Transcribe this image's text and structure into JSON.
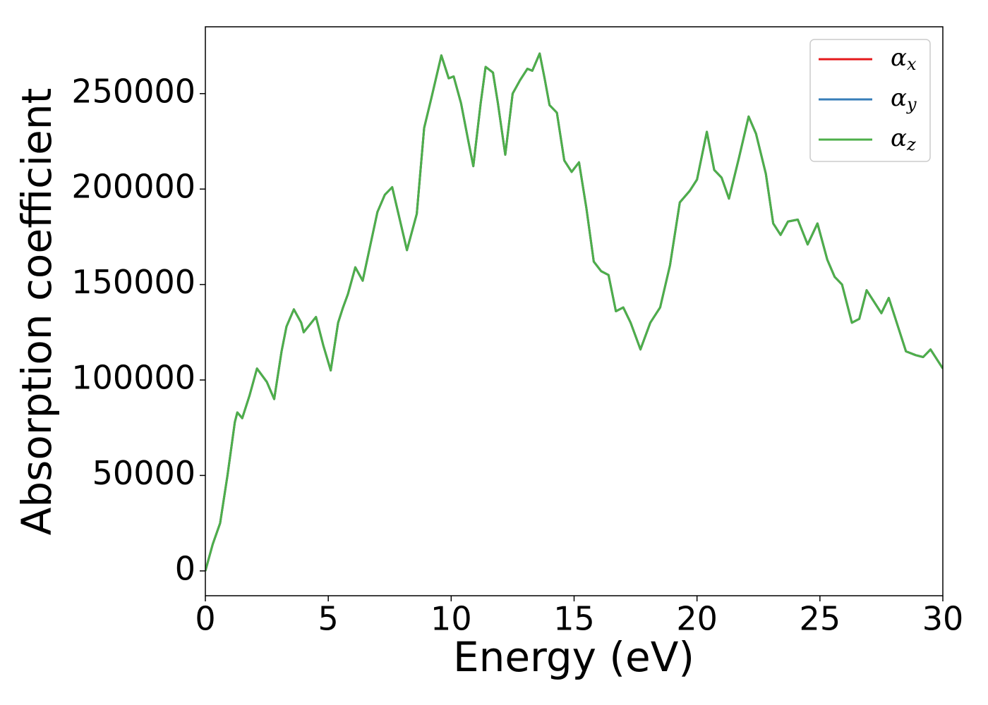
{
  "chart_data": {
    "type": "line",
    "xlabel": "Energy (eV)",
    "ylabel": "Absorption coefficient",
    "x": [
      0,
      0.3,
      0.6,
      0.9,
      1.2,
      1.3,
      1.5,
      1.8,
      2.1,
      2.5,
      2.8,
      3.1,
      3.3,
      3.6,
      3.9,
      4.0,
      4.5,
      4.8,
      5.1,
      5.4,
      5.6,
      5.8,
      6.1,
      6.4,
      6.7,
      7.0,
      7.3,
      7.6,
      7.8,
      8.2,
      8.6,
      8.9,
      9.2,
      9.6,
      9.9,
      10.1,
      10.4,
      10.7,
      10.9,
      11.2,
      11.4,
      11.7,
      11.9,
      12.2,
      12.5,
      12.8,
      13.1,
      13.3,
      13.6,
      13.8,
      14.0,
      14.3,
      14.6,
      14.9,
      15.2,
      15.5,
      15.8,
      16.1,
      16.4,
      16.7,
      17.0,
      17.3,
      17.7,
      18.1,
      18.5,
      18.9,
      19.3,
      19.7,
      20.0,
      20.4,
      20.7,
      21.0,
      21.3,
      21.7,
      22.1,
      22.4,
      22.8,
      23.1,
      23.4,
      23.7,
      24.1,
      24.5,
      24.9,
      25.3,
      25.6,
      25.9,
      26.3,
      26.6,
      26.9,
      27.2,
      27.5,
      27.8,
      28.1,
      28.5,
      28.9,
      29.2,
      29.5,
      30.0
    ],
    "series": [
      {
        "name": "αx",
        "color": "#e41a1c",
        "values": [
          0,
          14000,
          25000,
          50000,
          78000,
          83000,
          80000,
          92000,
          106000,
          99000,
          90000,
          115000,
          128000,
          137000,
          130000,
          125000,
          133000,
          118000,
          105000,
          130000,
          138000,
          145000,
          159000,
          152000,
          170000,
          188000,
          197000,
          201000,
          190000,
          168000,
          187000,
          232000,
          248000,
          270000,
          258000,
          259000,
          245000,
          225000,
          212000,
          245000,
          264000,
          261000,
          245000,
          218000,
          250000,
          257000,
          263000,
          262000,
          271000,
          258000,
          244000,
          240000,
          215000,
          209000,
          214000,
          190000,
          162000,
          157000,
          155000,
          136000,
          138000,
          130000,
          116000,
          130000,
          138000,
          160000,
          193000,
          199000,
          205000,
          230000,
          210000,
          206000,
          195000,
          216000,
          238000,
          229000,
          208000,
          182000,
          176000,
          183000,
          184000,
          171000,
          182000,
          163000,
          154000,
          150000,
          130000,
          132000,
          147000,
          141000,
          135000,
          143000,
          131000,
          115000,
          113000,
          112000,
          116000,
          106000
        ]
      },
      {
        "name": "αy",
        "color": "#377eb8",
        "values": [
          0,
          14000,
          25000,
          50000,
          78000,
          83000,
          80000,
          92000,
          106000,
          99000,
          90000,
          115000,
          128000,
          137000,
          130000,
          125000,
          133000,
          118000,
          105000,
          130000,
          138000,
          145000,
          159000,
          152000,
          170000,
          188000,
          197000,
          201000,
          190000,
          168000,
          187000,
          232000,
          248000,
          270000,
          258000,
          259000,
          245000,
          225000,
          212000,
          245000,
          264000,
          261000,
          245000,
          218000,
          250000,
          257000,
          263000,
          262000,
          271000,
          258000,
          244000,
          240000,
          215000,
          209000,
          214000,
          190000,
          162000,
          157000,
          155000,
          136000,
          138000,
          130000,
          116000,
          130000,
          138000,
          160000,
          193000,
          199000,
          205000,
          230000,
          210000,
          206000,
          195000,
          216000,
          238000,
          229000,
          208000,
          182000,
          176000,
          183000,
          184000,
          171000,
          182000,
          163000,
          154000,
          150000,
          130000,
          132000,
          147000,
          141000,
          135000,
          143000,
          131000,
          115000,
          113000,
          112000,
          116000,
          106000
        ]
      },
      {
        "name": "αz",
        "color": "#4daf4a",
        "values": [
          0,
          14000,
          25000,
          50000,
          78000,
          83000,
          80000,
          92000,
          106000,
          99000,
          90000,
          115000,
          128000,
          137000,
          130000,
          125000,
          133000,
          118000,
          105000,
          130000,
          138000,
          145000,
          159000,
          152000,
          170000,
          188000,
          197000,
          201000,
          190000,
          168000,
          187000,
          232000,
          248000,
          270000,
          258000,
          259000,
          245000,
          225000,
          212000,
          245000,
          264000,
          261000,
          245000,
          218000,
          250000,
          257000,
          263000,
          262000,
          271000,
          258000,
          244000,
          240000,
          215000,
          209000,
          214000,
          190000,
          162000,
          157000,
          155000,
          136000,
          138000,
          130000,
          116000,
          130000,
          138000,
          160000,
          193000,
          199000,
          205000,
          230000,
          210000,
          206000,
          195000,
          216000,
          238000,
          229000,
          208000,
          182000,
          176000,
          183000,
          184000,
          171000,
          182000,
          163000,
          154000,
          150000,
          130000,
          132000,
          147000,
          141000,
          135000,
          143000,
          131000,
          115000,
          113000,
          112000,
          116000,
          106000
        ]
      }
    ],
    "xlim": [
      0,
      30
    ],
    "xticks": [
      0,
      5,
      10,
      15,
      20,
      25,
      30
    ],
    "ylim": [
      -13000,
      285000
    ],
    "yticks": [
      0,
      50000,
      100000,
      150000,
      200000,
      250000
    ],
    "grid": false,
    "legend": "upper right"
  }
}
